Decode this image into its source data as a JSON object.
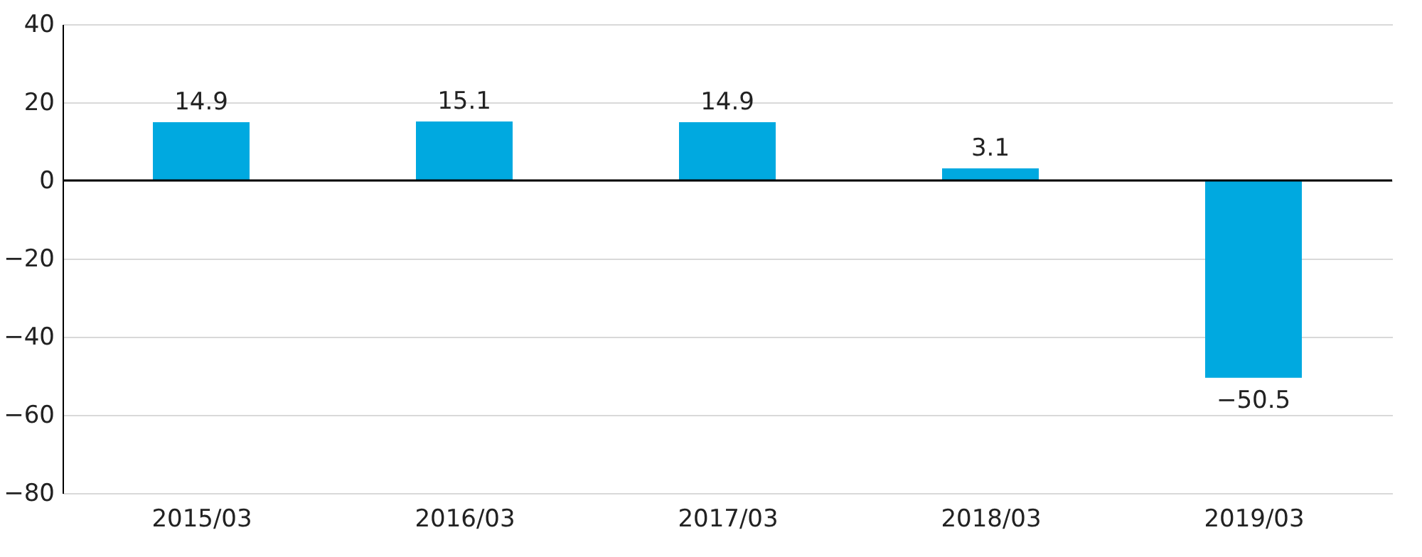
{
  "chart_data": {
    "type": "bar",
    "categories": [
      "2015/03",
      "2016/03",
      "2017/03",
      "2018/03",
      "2019/03"
    ],
    "values": [
      14.9,
      15.1,
      14.9,
      3.1,
      -50.5
    ],
    "color": "#00a9e0",
    "ylim": [
      -80,
      40
    ],
    "yticks": [
      -80,
      -60,
      -40,
      -20,
      0,
      20,
      40
    ],
    "grid": "y",
    "data_labels": true
  }
}
